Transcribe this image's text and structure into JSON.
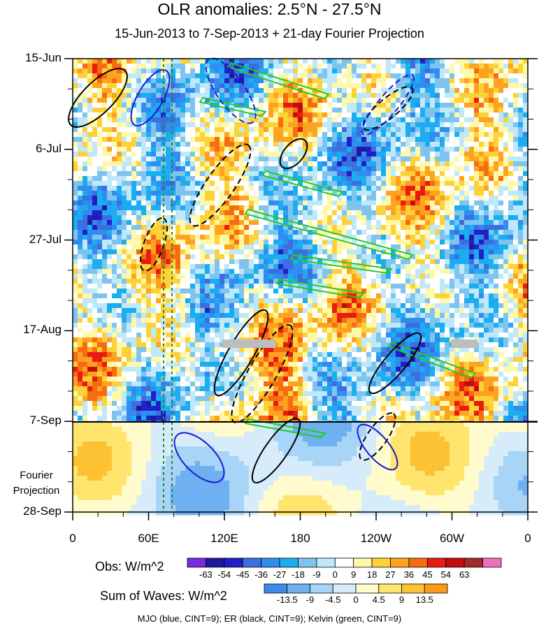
{
  "chart_data": {
    "type": "heatmap",
    "title": "OLR anomalies: 2.5°N - 27.5°N",
    "subtitle": "15-Jun-2013 to 7-Sep-2013 + 21-day Fourier Projection",
    "x_ticks": [
      "0",
      "60E",
      "120E",
      "180",
      "120W",
      "60W",
      "0"
    ],
    "x_range_lon": [
      0,
      360
    ],
    "y_ticks": [
      "15-Jun",
      "6-Jul",
      "27-Jul",
      "17-Aug",
      "7-Sep",
      "28-Sep"
    ],
    "y_range": [
      "15-Jun-2013",
      "28-Sep-2013"
    ],
    "observation_end": "7-Sep",
    "projection_label": [
      "Fourier",
      "Projection"
    ],
    "obs_colorbar": {
      "label": "Obs: W/m^2",
      "levels": [
        -63,
        -54,
        -45,
        -36,
        -27,
        -18,
        -9,
        0,
        9,
        18,
        27,
        36,
        45,
        54,
        63
      ],
      "colors": [
        "#7b2ae0",
        "#1d1a9e",
        "#2020c8",
        "#3d6ee0",
        "#2f8cf0",
        "#1aaef0",
        "#7ec4ef",
        "#bfe8fb",
        "#ffffff",
        "#fff8a8",
        "#fdd238",
        "#fda321",
        "#f76c10",
        "#e81b10",
        "#c40c10",
        "#a42a2a",
        "#f070c0"
      ]
    },
    "waves_colorbar": {
      "label": "Sum of Waves: W/m^2",
      "levels": [
        -13.5,
        -9,
        -4.5,
        0,
        4.5,
        9,
        13.5
      ],
      "colors": [
        "#3d8ae8",
        "#6fb0f0",
        "#a8d4f7",
        "#d6ecfb",
        "#fffbcc",
        "#ffe46e",
        "#fdc234",
        "#fd9a1c"
      ]
    },
    "contours_note": "MJO (blue, CINT=9); ER (black, CINT=9); Kelvin (green, CINT=9)",
    "series": [
      {
        "name": "MJO",
        "color": "#0000cc"
      },
      {
        "name": "ER",
        "color": "#000000"
      },
      {
        "name": "Kelvin",
        "color": "#00cc00"
      }
    ]
  }
}
